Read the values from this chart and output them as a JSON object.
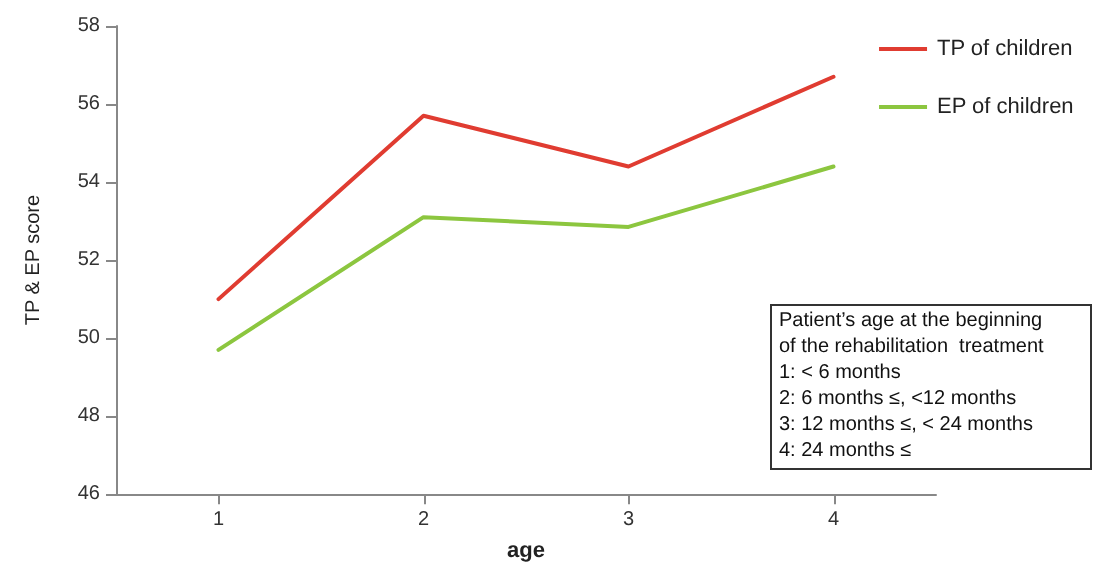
{
  "chart_data": {
    "type": "line",
    "xlabel": "age",
    "ylabel": "TP & EP score",
    "categories": [
      "1",
      "2",
      "3",
      "4"
    ],
    "series": [
      {
        "name": "TP of children",
        "color": "#e03c31",
        "values": [
          51.0,
          55.7,
          54.4,
          56.7
        ]
      },
      {
        "name": "EP of children",
        "color": "#8cc63f",
        "values": [
          49.7,
          53.1,
          52.85,
          54.4
        ]
      }
    ],
    "ylim": [
      46,
      58
    ],
    "yticks": [
      46,
      48,
      50,
      52,
      54,
      56,
      58
    ],
    "grid": false,
    "legend": "top right",
    "marker": "none",
    "line_style": "solid",
    "annotations": [
      "Patient’s age at the beginning",
      "of the rehabilitation  treatment",
      "1: < 6 months",
      "2: 6 months ≤, <12 months",
      "3: 12 months ≤, < 24 months",
      "4: 24 months ≤"
    ]
  }
}
